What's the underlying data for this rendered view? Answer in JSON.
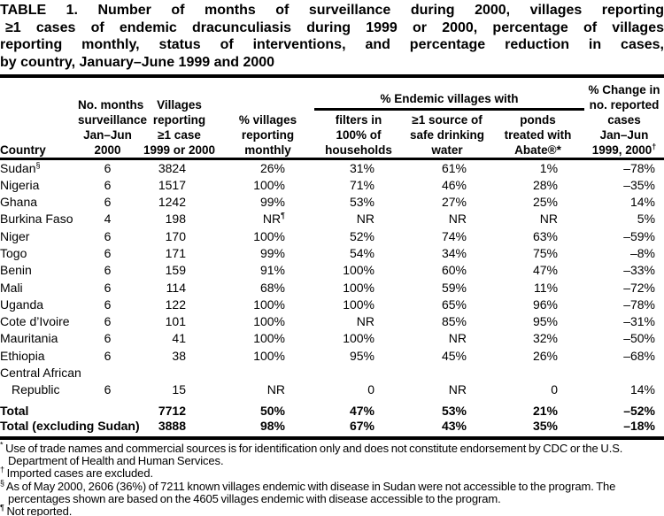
{
  "title": {
    "lines": [
      "TABLE 1. Number of months of surveillance during 2000, villages reporting",
      "≥1 cases of endemic dracunculiasis during 1999 or 2000, percentage of villages",
      "reporting monthly, status of interventions, and percentage reduction in cases,",
      "by country, January–June 1999 and 2000"
    ]
  },
  "table": {
    "col_keys": [
      "country",
      "months",
      "villages",
      "monthly",
      "filters",
      "water",
      "ponds",
      "change"
    ],
    "headers": {
      "country": "Country",
      "months": [
        "No. months",
        "surveillance",
        "Jan–Jun",
        "2000"
      ],
      "villages": [
        "Villages",
        "reporting",
        "≥1 case",
        "1999 or 2000"
      ],
      "monthly": [
        "% villages",
        "reporting",
        "monthly"
      ],
      "group": "% Endemic villages with",
      "filters": [
        "filters in",
        "100% of",
        "households"
      ],
      "water": [
        "≥1 source of",
        "safe drinking",
        "water"
      ],
      "ponds": [
        "ponds",
        "treated with",
        "Abate®*"
      ],
      "change": [
        "% Change in",
        "no. reported",
        "cases",
        "Jan–Jun"
      ],
      "change_year": "1999, 2000",
      "change_year_sup": "†"
    },
    "rows": [
      {
        "country": "Sudan",
        "country_sup": "§",
        "months": "6",
        "villages": "3824",
        "monthly": "26%",
        "filters": "31%",
        "water": "61%",
        "ponds": "1%",
        "change": "–78%"
      },
      {
        "country": "Nigeria",
        "months": "6",
        "villages": "1517",
        "monthly": "100%",
        "filters": "71%",
        "water": "46%",
        "ponds": "28%",
        "change": "–35%"
      },
      {
        "country": "Ghana",
        "months": "6",
        "villages": "1242",
        "monthly": "99%",
        "filters": "53%",
        "water": "27%",
        "ponds": "25%",
        "change": "14%"
      },
      {
        "country": "Burkina Faso",
        "months": "4",
        "villages": "198",
        "monthly": "NR",
        "monthly_sup": "¶",
        "filters": "NR",
        "water": "NR",
        "ponds": "NR",
        "change": "5%"
      },
      {
        "country": "Niger",
        "months": "6",
        "villages": "170",
        "monthly": "100%",
        "filters": "52%",
        "water": "74%",
        "ponds": "63%",
        "change": "–59%"
      },
      {
        "country": "Togo",
        "months": "6",
        "villages": "171",
        "monthly": "99%",
        "filters": "54%",
        "water": "34%",
        "ponds": "75%",
        "change": "–8%"
      },
      {
        "country": "Benin",
        "months": "6",
        "villages": "159",
        "monthly": "91%",
        "filters": "100%",
        "water": "60%",
        "ponds": "47%",
        "change": "–33%"
      },
      {
        "country": "Mali",
        "months": "6",
        "villages": "114",
        "monthly": "68%",
        "filters": "100%",
        "water": "59%",
        "ponds": "11%",
        "change": "–72%"
      },
      {
        "country": "Uganda",
        "months": "6",
        "villages": "122",
        "monthly": "100%",
        "filters": "100%",
        "water": "65%",
        "ponds": "96%",
        "change": "–78%"
      },
      {
        "country": "Cote d’Ivoire",
        "months": "6",
        "villages": "101",
        "monthly": "100%",
        "filters": "NR",
        "water": "85%",
        "ponds": "95%",
        "change": "–31%"
      },
      {
        "country": "Mauritania",
        "months": "6",
        "villages": "41",
        "monthly": "100%",
        "filters": "100%",
        "water": "NR",
        "ponds": "32%",
        "change": "–50%"
      },
      {
        "country": "Ethiopia",
        "months": "6",
        "villages": "38",
        "monthly": "100%",
        "filters": "95%",
        "water": "45%",
        "ponds": "26%",
        "change": "–68%"
      },
      {
        "country": "Central African",
        "months": "",
        "villages": "",
        "monthly": "",
        "filters": "",
        "water": "",
        "ponds": "",
        "change": ""
      },
      {
        "country": "Republic",
        "indent": true,
        "months": "6",
        "villages": "15",
        "monthly": "NR",
        "filters": "0",
        "water": "NR",
        "ponds": "0",
        "change": "14%"
      }
    ],
    "totals": [
      {
        "country": "Total",
        "months": "",
        "villages": "7712",
        "monthly": "50%",
        "filters": "47%",
        "water": "53%",
        "ponds": "21%",
        "change": "–52%"
      },
      {
        "country": "Total (excluding Sudan)",
        "months": "",
        "villages": "3888",
        "monthly": "98%",
        "filters": "67%",
        "water": "43%",
        "ponds": "35%",
        "change": "–18%"
      }
    ]
  },
  "footnotes": [
    {
      "sup": "*",
      "text": "Use of trade names and commercial sources is for identification only and does not constitute endorsement by CDC or the U.S. Department of Health and Human Services."
    },
    {
      "sup": "†",
      "text": "Imported cases are excluded."
    },
    {
      "sup": "§",
      "text": "As of May 2000, 2606 (36%) of 7211 known villages endemic with disease in Sudan were not accessible to the program. The percentages shown are based on the 4605 villages endemic with disease accessible to the program."
    },
    {
      "sup": "¶",
      "text": "Not reported."
    }
  ]
}
